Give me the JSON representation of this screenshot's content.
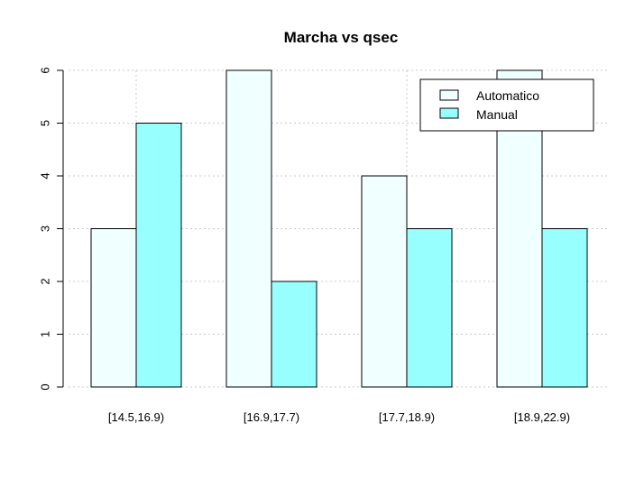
{
  "chart_data": {
    "type": "bar",
    "title": "Marcha vs qsec",
    "xlabel": "",
    "ylabel": "",
    "categories": [
      "[14.5,16.9)",
      "[16.9,17.7)",
      "[17.7,18.9)",
      "[18.9,22.9)"
    ],
    "series": [
      {
        "name": "Automatico",
        "values": [
          3,
          6,
          4,
          6
        ],
        "color": "#F0FFFF"
      },
      {
        "name": "Manual",
        "values": [
          5,
          2,
          3,
          3
        ],
        "color": "#98FFFF"
      }
    ],
    "ylim": [
      0,
      6
    ],
    "yticks": [
      0,
      1,
      2,
      3,
      4,
      5,
      6
    ],
    "grid": true,
    "legend_position": "top-right"
  }
}
